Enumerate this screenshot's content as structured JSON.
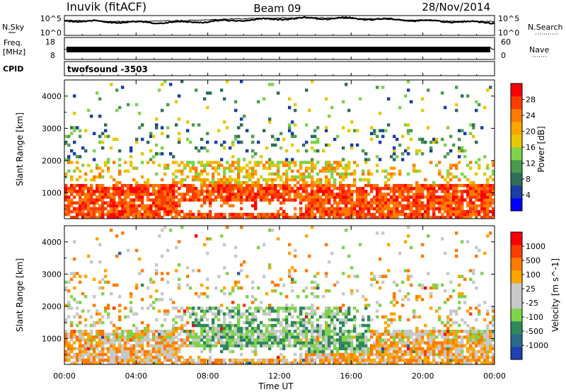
{
  "header": {
    "station": "Inuvik (fitACF)",
    "beam": "Beam 09",
    "date": "28/Nov/2014"
  },
  "sky_panel": {
    "left_label": "N.Sky",
    "left_ticks": [
      "10^5",
      "10^0"
    ],
    "right_label": "N.Search",
    "right_ticks": [
      "10^5",
      "10^0"
    ]
  },
  "freq_panel": {
    "left_label_1": "Freq.",
    "left_label_2": "[MHz]",
    "left_ticks": [
      "18",
      "8"
    ],
    "right_label": "Nave",
    "right_ticks": [
      "60",
      "0"
    ]
  },
  "cpid_panel": {
    "label": "CPID",
    "value": "twofsound -3503"
  },
  "x_axis": {
    "label": "Time UT",
    "ticks": [
      "00:00",
      "04:00",
      "08:00",
      "12:00",
      "16:00",
      "20:00",
      "00:00"
    ]
  },
  "colors": {
    "power_scale": [
      "#0000ff",
      "#1a3da8",
      "#2e6e58",
      "#4c9a4c",
      "#7ed34a",
      "#e8c800",
      "#ffa500",
      "#ff7a00",
      "#ff3c00",
      "#ff0000"
    ],
    "velocity_scale": [
      "#1f3fb2",
      "#2a6a8a",
      "#2f8a5a",
      "#7ed34a",
      "#c8c8c8",
      "#c8c8c8",
      "#ffa500",
      "#ff7a00",
      "#ff3c00",
      "#ff0000"
    ]
  },
  "chart_data": [
    {
      "type": "heatmap",
      "panel": "power",
      "ylabel": "Slant Range [km]",
      "yticks": [
        1000,
        2000,
        3000,
        4000
      ],
      "ylim": [
        200,
        4500
      ],
      "xlim_hours": [
        0,
        24
      ],
      "colorbar_label": "Power [dB]",
      "colorbar_ticks": [
        "28",
        "24",
        "20",
        "16",
        "12",
        "8",
        "4"
      ],
      "colorbar_range": [
        0,
        30
      ]
    },
    {
      "type": "heatmap",
      "panel": "velocity",
      "ylabel": "Slant Range [km]",
      "yticks": [
        1000,
        2000,
        3000,
        4000
      ],
      "ylim": [
        200,
        4500
      ],
      "xlim_hours": [
        0,
        24
      ],
      "colorbar_label": "Velocity [m s^-1]",
      "colorbar_ticks": [
        "1000",
        "500",
        "100",
        "25",
        "-25",
        "-100",
        "-500",
        "-1000"
      ]
    }
  ]
}
